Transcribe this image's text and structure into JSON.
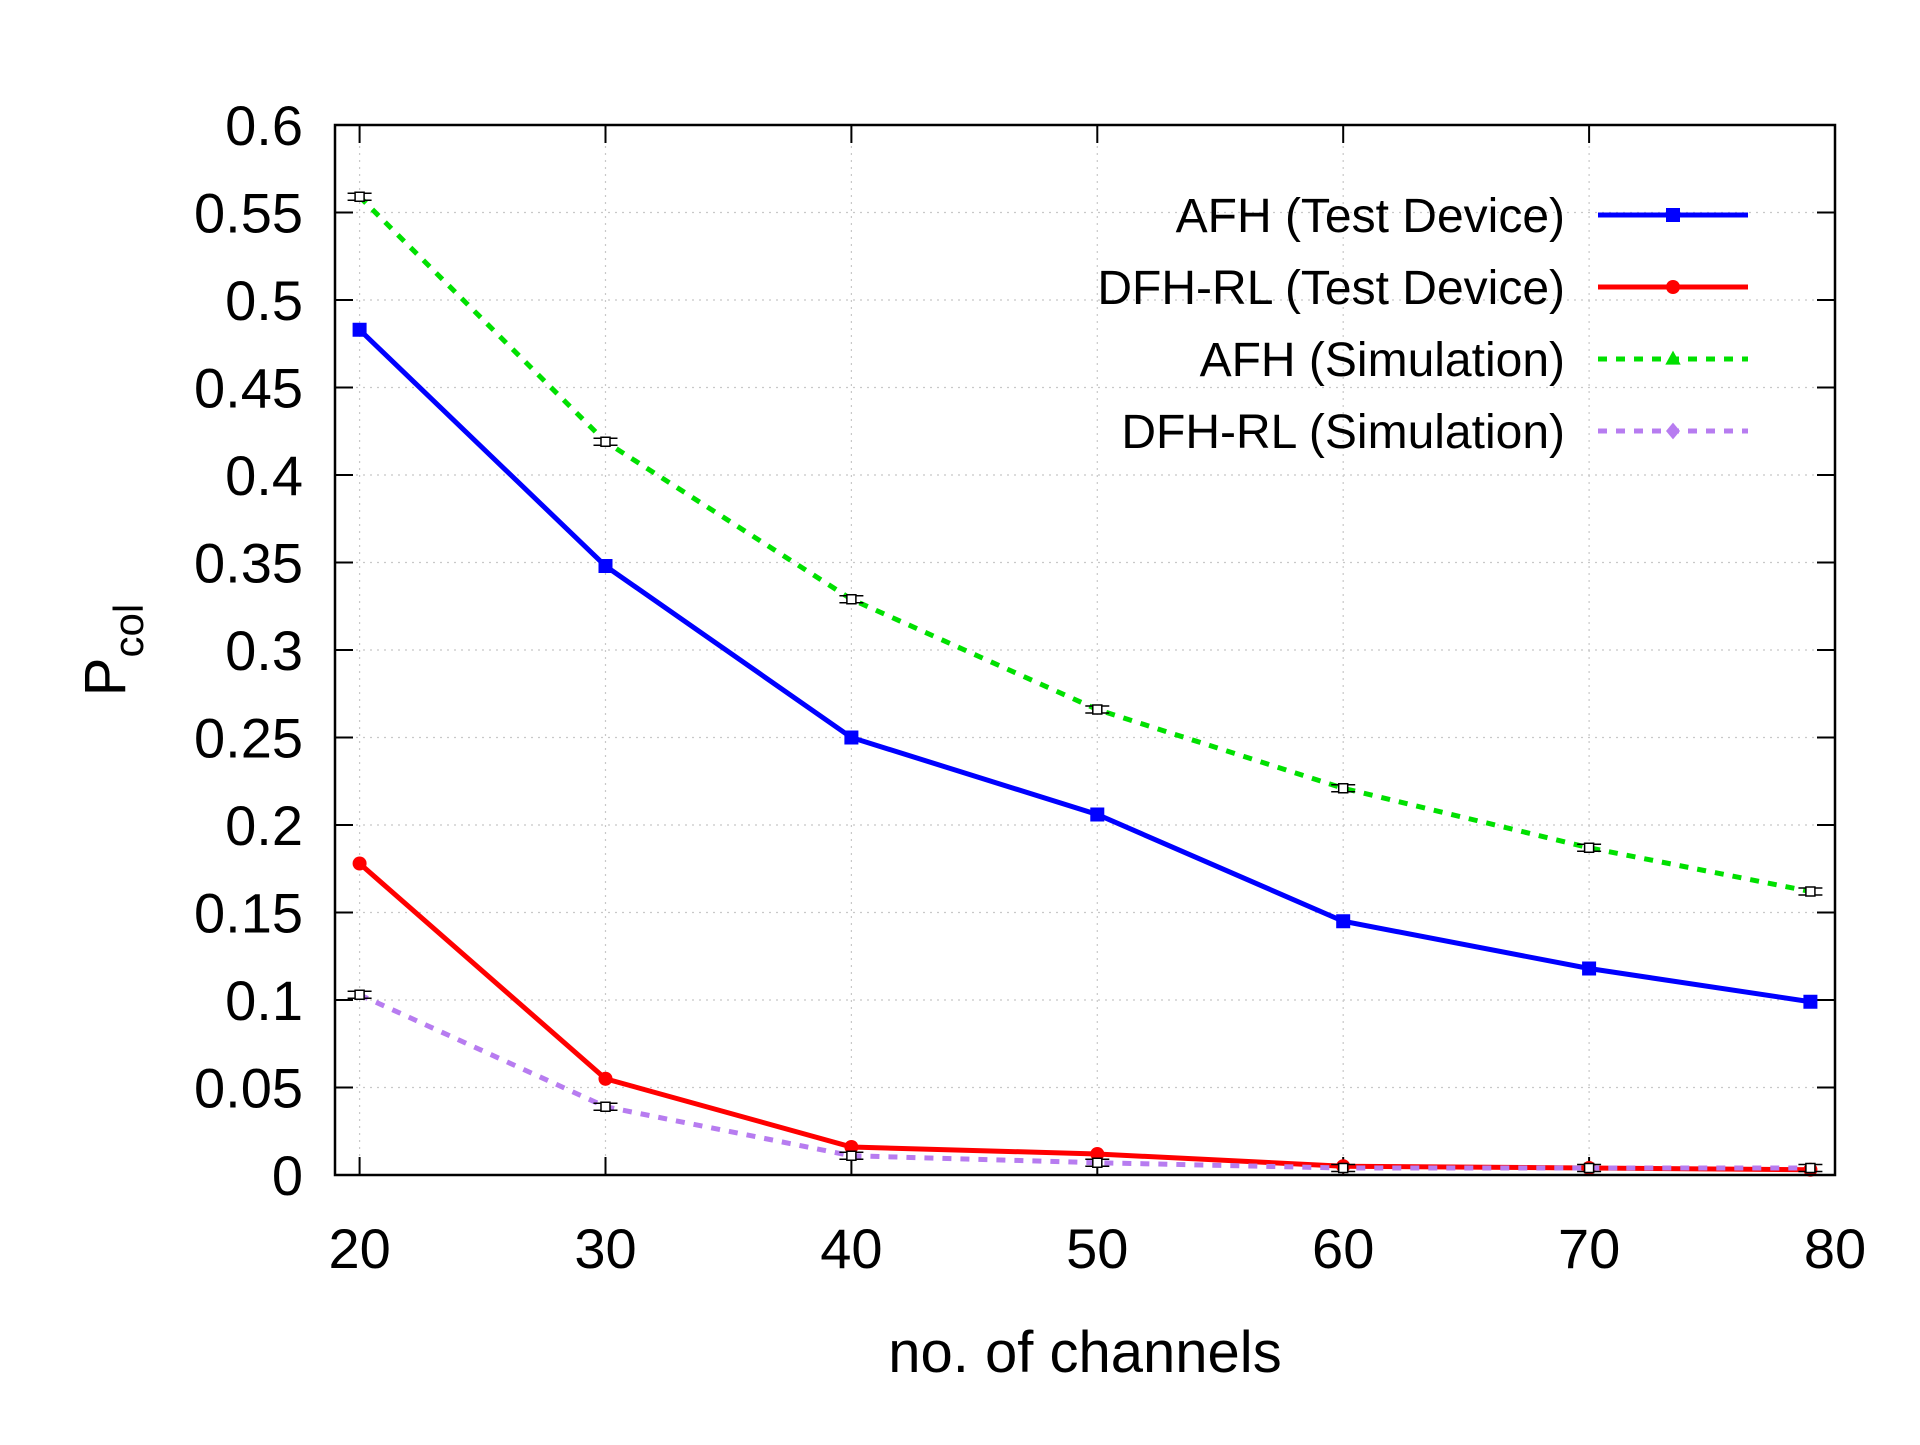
{
  "chart_data": {
    "type": "line",
    "title": "",
    "xlabel": "no. of channels",
    "ylabel": "P",
    "ylabel_subscript": "col",
    "xlim": [
      19,
      80
    ],
    "ylim": [
      0,
      0.6
    ],
    "xticks": [
      20,
      30,
      40,
      50,
      60,
      70,
      80
    ],
    "xtick_labels": [
      "20",
      "30",
      "40",
      "50",
      "60",
      "70",
      "80"
    ],
    "yticks": [
      0,
      0.05,
      0.1,
      0.15,
      0.2,
      0.25,
      0.3,
      0.35,
      0.4,
      0.45,
      0.5,
      0.55,
      0.6
    ],
    "ytick_labels": [
      "0",
      "0.05",
      "0.1",
      "0.15",
      "0.2",
      "0.25",
      "0.3",
      "0.35",
      "0.4",
      "0.45",
      "0.5",
      "0.55",
      "0.6"
    ],
    "grid": true,
    "legend_position": "top-right",
    "x": [
      20,
      30,
      40,
      50,
      60,
      70,
      79
    ],
    "series": [
      {
        "name": "AFH (Test Device)",
        "values": [
          0.483,
          0.348,
          0.25,
          0.206,
          0.145,
          0.118,
          0.099
        ],
        "color": "#0000ff",
        "style": "solid",
        "marker": "square",
        "errorbars": false
      },
      {
        "name": "DFH-RL (Test Device)",
        "values": [
          0.178,
          0.055,
          0.016,
          0.012,
          0.005,
          0.004,
          0.003
        ],
        "color": "#ff0000",
        "style": "solid",
        "marker": "circle",
        "errorbars": false
      },
      {
        "name": "AFH (Simulation)",
        "values": [
          0.559,
          0.419,
          0.329,
          0.266,
          0.221,
          0.187,
          0.162
        ],
        "color": "#00e000",
        "style": "dotted",
        "marker": "triangle",
        "errorbars": true,
        "errorbar_halfwidth": 0.002
      },
      {
        "name": "DFH-RL (Simulation)",
        "values": [
          0.103,
          0.039,
          0.011,
          0.007,
          0.004,
          0.004,
          0.004
        ],
        "color": "#b77cf0",
        "style": "dotted",
        "marker": "diamond",
        "errorbars": true,
        "errorbar_halfwidth": 0.002
      }
    ]
  }
}
